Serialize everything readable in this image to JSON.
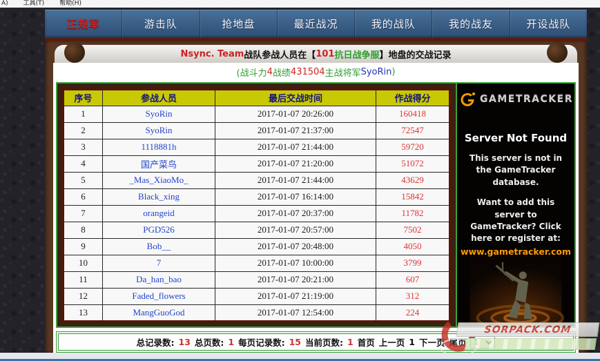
{
  "browser_menu": {
    "items": [
      "A)",
      "工具(T)",
      "帮助(H)"
    ]
  },
  "nav": {
    "tabs": [
      {
        "label": "正规军",
        "active": true
      },
      {
        "label": "游击队",
        "active": false
      },
      {
        "label": "抢地盘",
        "active": false
      },
      {
        "label": "最近战况",
        "active": false
      },
      {
        "label": "我的战队",
        "active": false
      },
      {
        "label": "我的战友",
        "active": false
      },
      {
        "label": "开设战队",
        "active": false
      }
    ]
  },
  "header": {
    "team": "Nsync. Team",
    "text_before": "战队参战人员在【",
    "server_num": "101",
    "server_name": "抗日战争服",
    "text_after": "】地盘的交战记录"
  },
  "stats": {
    "parts": [
      {
        "text": "(战斗力",
        "color": "green"
      },
      {
        "text": "4",
        "color": "red"
      },
      {
        "text": " 战绩",
        "color": "green"
      },
      {
        "text": "431504",
        "color": "red"
      },
      {
        "text": " 主战将军",
        "color": "green"
      },
      {
        "text": "SyoRin",
        "color": "blue"
      },
      {
        "text": ")",
        "color": "green"
      }
    ]
  },
  "table": {
    "columns": [
      "序号",
      "参战人员",
      "最后交战时间",
      "作战得分"
    ],
    "rows": [
      {
        "no": "1",
        "player": "SyoRin",
        "time": "2017-01-07 20:26:00",
        "score": "160418"
      },
      {
        "no": "2",
        "player": "SyoRin",
        "time": "2017-01-07 21:37:00",
        "score": "72547"
      },
      {
        "no": "3",
        "player": "1118881h",
        "time": "2017-01-07 21:44:00",
        "score": "59720"
      },
      {
        "no": "4",
        "player": "国产菜鸟",
        "time": "2017-01-07 21:20:00",
        "score": "51072"
      },
      {
        "no": "5",
        "player": "_Mas_XiaoMo_",
        "time": "2017-01-07 21:44:00",
        "score": "43629"
      },
      {
        "no": "6",
        "player": "Black_xing",
        "time": "2017-01-07 16:14:00",
        "score": "15842"
      },
      {
        "no": "7",
        "player": "orangeid",
        "time": "2017-01-07 20:37:00",
        "score": "11782"
      },
      {
        "no": "8",
        "player": "PGD526",
        "time": "2017-01-07 20:57:00",
        "score": "7502"
      },
      {
        "no": "9",
        "player": "Bob__",
        "time": "2017-01-07 20:48:00",
        "score": "4050"
      },
      {
        "no": "10",
        "player": "7",
        "time": "2017-01-07 10:00:00",
        "score": "3799"
      },
      {
        "no": "11",
        "player": "Da_han_bao",
        "time": "2017-01-07 20:21:00",
        "score": "607"
      },
      {
        "no": "12",
        "player": "Faded_flowers",
        "time": "2017-01-07 21:19:00",
        "score": "312"
      },
      {
        "no": "13",
        "player": "MangGuoGod",
        "time": "2017-01-07 12:54:00",
        "score": "224"
      }
    ]
  },
  "ad": {
    "brand": "GAMETRACKER",
    "title": "Server Not Found",
    "line1": "This server is not in the GameTracker database.",
    "line2": "Want to add this server to GameTracker?  Click here or register at:",
    "url": "www.gametracker.com"
  },
  "pagination": {
    "stats": [
      {
        "label": "总记录数:",
        "value": "13"
      },
      {
        "label": "总页数:",
        "value": "1"
      },
      {
        "label": "每页记录数:",
        "value": "15"
      },
      {
        "label": "当前页数:",
        "value": "1"
      }
    ],
    "links": [
      "首页",
      "上一页",
      "1",
      "下一页",
      "尾页"
    ],
    "page_select_value": "1"
  },
  "watermark": {
    "text": "SORPACK.COM"
  },
  "colors": {
    "nav_blue": "#3c6089",
    "panel_brown": "#593823",
    "green_border": "#3fa03f",
    "header_olive": "#c8c805",
    "header_navy": "#15157e",
    "score_red": "#e03232",
    "name_blue": "#2244cc",
    "title_red": "#cc2222",
    "stats_green": "#2f9e2f",
    "ad_url_orange": "#ff9c00"
  }
}
